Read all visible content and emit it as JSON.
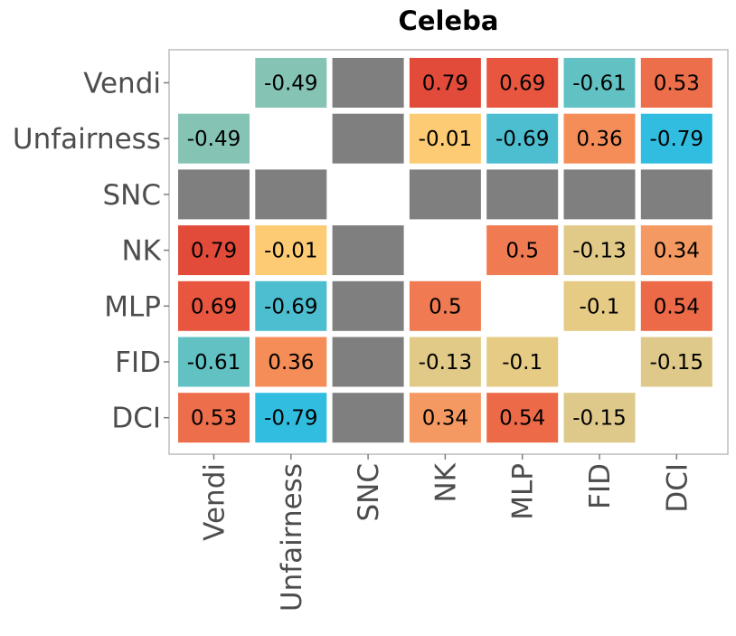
{
  "chart_data": {
    "type": "heatmap",
    "title": "Celeba",
    "xlabel": "",
    "ylabel": "",
    "grid": false,
    "legend": "none",
    "rows": [
      "Vendi",
      "Unfairness",
      "SNC",
      "NK",
      "MLP",
      "FID",
      "DCI"
    ],
    "columns": [
      "Vendi",
      "Unfairness",
      "SNC",
      "NK",
      "MLP",
      "FID",
      "DCI"
    ],
    "values": [
      [
        null,
        -0.49,
        "NA",
        0.79,
        0.69,
        -0.61,
        0.53
      ],
      [
        -0.49,
        null,
        "NA",
        -0.01,
        -0.69,
        0.36,
        -0.79
      ],
      [
        "NA",
        "NA",
        null,
        "NA",
        "NA",
        "NA",
        "NA"
      ],
      [
        0.79,
        -0.01,
        "NA",
        null,
        0.5,
        -0.13,
        0.34
      ],
      [
        0.69,
        -0.69,
        "NA",
        0.5,
        null,
        -0.1,
        0.54
      ],
      [
        -0.61,
        0.36,
        "NA",
        -0.13,
        -0.1,
        null,
        -0.15
      ],
      [
        0.53,
        -0.79,
        "NA",
        0.34,
        0.54,
        -0.15,
        null
      ]
    ],
    "na_color": "#7f7f7f",
    "color_scale": [
      {
        "v": -0.79,
        "c": "#30bde0"
      },
      {
        "v": -0.69,
        "c": "#4dbdd0"
      },
      {
        "v": -0.61,
        "c": "#61c1c3"
      },
      {
        "v": -0.49,
        "c": "#85c3b4"
      },
      {
        "v": -0.15,
        "c": "#dec98a"
      },
      {
        "v": -0.1,
        "c": "#e6cb84"
      },
      {
        "v": -0.01,
        "c": "#fccb73"
      },
      {
        "v": 0.34,
        "c": "#f59962"
      },
      {
        "v": 0.36,
        "c": "#f48d58"
      },
      {
        "v": 0.5,
        "c": "#f07a52"
      },
      {
        "v": 0.54,
        "c": "#ec6a48"
      },
      {
        "v": 0.69,
        "c": "#e8563f"
      },
      {
        "v": 0.79,
        "c": "#e24a3a"
      }
    ]
  }
}
